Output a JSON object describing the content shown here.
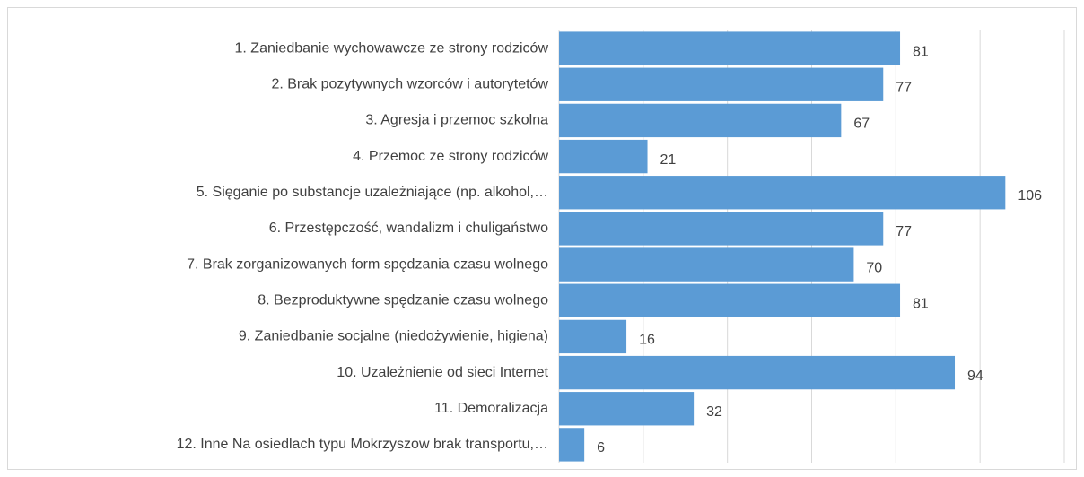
{
  "chart_data": {
    "type": "bar",
    "orientation": "horizontal",
    "categories": [
      "1. Zaniedbanie wychowawcze ze strony rodziców",
      "2. Brak pozytywnych wzorców i autorytetów",
      "3. Agresja i przemoc szkolna",
      "4. Przemoc ze strony rodziców",
      "5. Sięganie po substancje uzależniające (np. alkohol,…",
      "6. Przestępczość, wandalizm i chuligaństwo",
      "7. Brak zorganizowanych form spędzania czasu wolnego",
      "8. Bezproduktywne spędzanie czasu wolnego",
      "9. Zaniedbanie socjalne (niedożywienie, higiena)",
      "10. Uzależnienie od sieci Internet",
      "11. Demoralizacja",
      "12. Inne Na osiedlach typu Mokrzyszow brak transportu,…"
    ],
    "values": [
      81,
      77,
      67,
      21,
      106,
      77,
      70,
      81,
      16,
      94,
      32,
      6
    ],
    "color": "#5b9bd5",
    "xlim": [
      0,
      120
    ],
    "xticks": [
      0,
      20,
      40,
      60,
      80,
      100,
      120
    ],
    "grid": true
  }
}
